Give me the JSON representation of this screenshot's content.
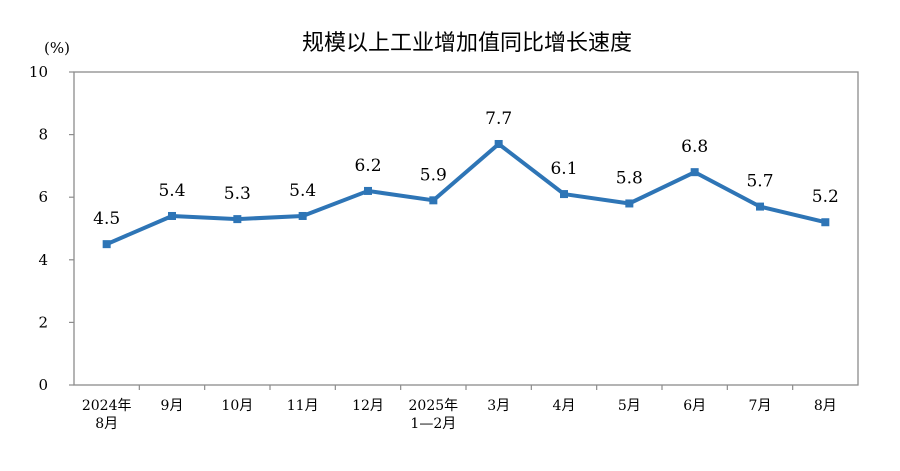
{
  "chart_data": {
    "type": "line",
    "title": "规模以上工业增加值同比增长速度",
    "ylabel": "(%)",
    "xlabel": "",
    "ylim": [
      0,
      10
    ],
    "yticks": [
      0,
      2,
      4,
      6,
      8,
      10
    ],
    "grid": false,
    "categories": [
      [
        "2024年",
        "8月"
      ],
      [
        "9月"
      ],
      [
        "10月"
      ],
      [
        "11月"
      ],
      [
        "12月"
      ],
      [
        "2025年",
        "1—2月"
      ],
      [
        "3月"
      ],
      [
        "4月"
      ],
      [
        "5月"
      ],
      [
        "6月"
      ],
      [
        "7月"
      ],
      [
        "8月"
      ]
    ],
    "series": [
      {
        "values": [
          4.5,
          5.4,
          5.3,
          5.4,
          6.2,
          5.9,
          7.7,
          6.1,
          5.8,
          6.8,
          5.7,
          5.2
        ],
        "labels": [
          "4.5",
          "5.4",
          "5.3",
          "5.4",
          "6.2",
          "5.9",
          "7.7",
          "6.1",
          "5.8",
          "6.8",
          "5.7",
          "5.2"
        ],
        "color": "#2e75b6"
      }
    ]
  }
}
